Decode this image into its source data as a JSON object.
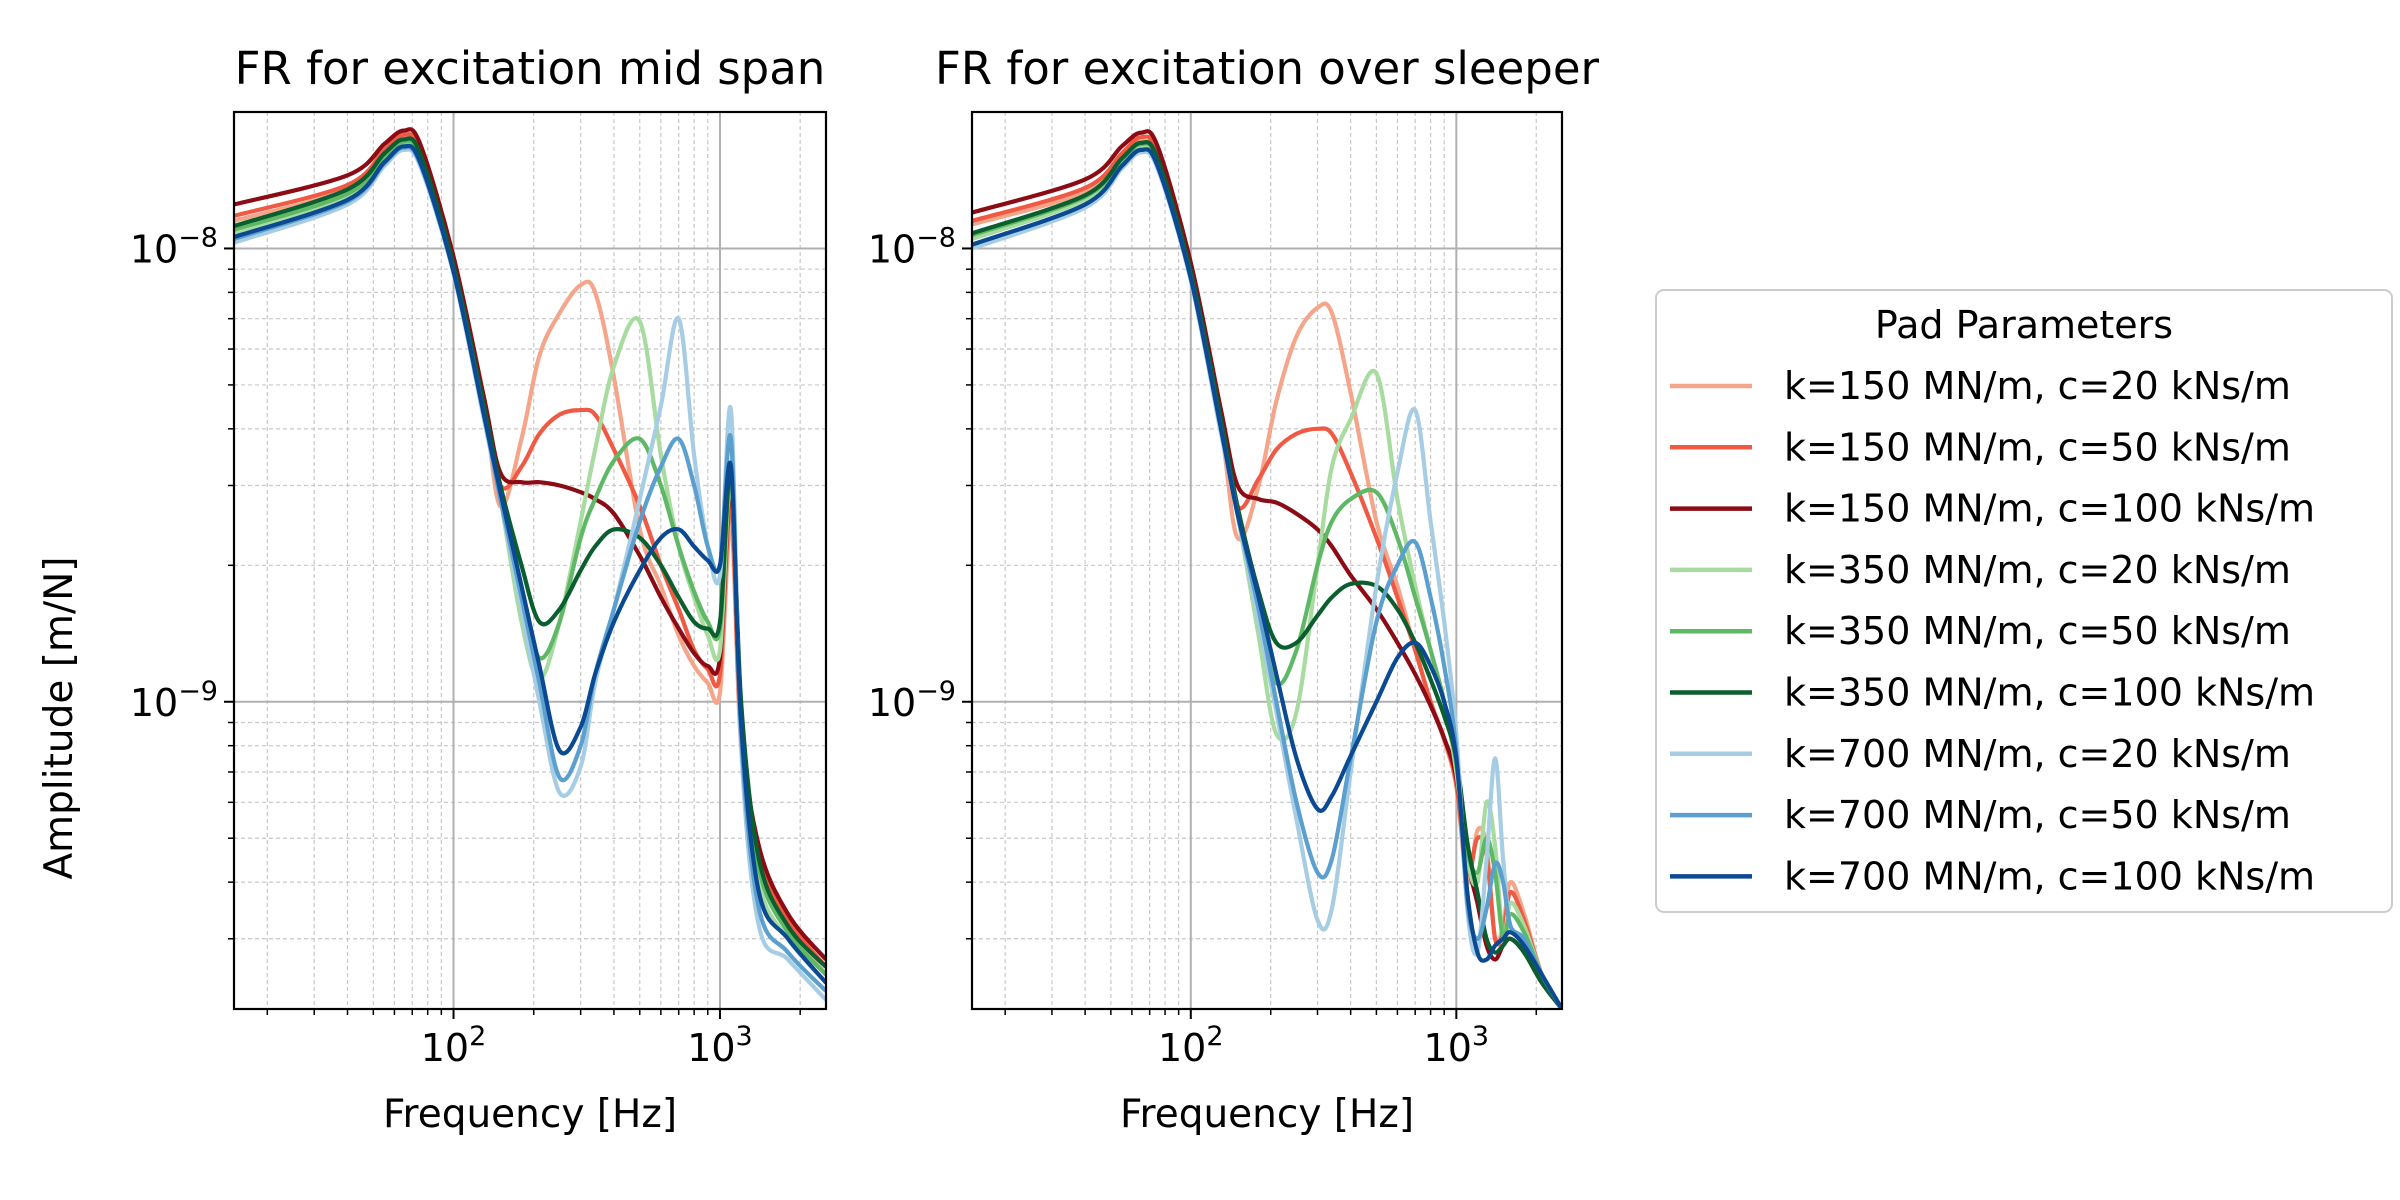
{
  "chart_data": [
    {
      "type": "line",
      "title": "FR for excitation mid span",
      "xlabel": "Frequency [Hz]",
      "ylabel": "Amplitude [m/N]",
      "ylabel_color": "#0000ff",
      "xscale": "log",
      "yscale": "log",
      "xlim": [
        15,
        2500
      ],
      "ylim": [
        2.1e-10,
        2e-08
      ],
      "x_major_ticks": [
        {
          "value": 100,
          "base": "10",
          "exp": "2"
        },
        {
          "value": 1000,
          "base": "10",
          "exp": "3"
        }
      ],
      "y_major_ticks": [
        {
          "value": 1e-09,
          "base": "10",
          "exp": "−9"
        },
        {
          "value": 1e-08,
          "base": "10",
          "exp": "−8"
        }
      ],
      "grid": true,
      "x": [
        15,
        40,
        55,
        65,
        75,
        100,
        130,
        150,
        180,
        210,
        250,
        300,
        340,
        400,
        500,
        600,
        700,
        800,
        900,
        1000,
        1100,
        1200,
        1400,
        1800,
        2500
      ],
      "series": [
        {
          "name": "k=150 MN/m, c=20 kNs/m",
          "color": "#f4a58a",
          "values": [
            1.15e-08,
            1.35e-08,
            1.6e-08,
            1.74e-08,
            1.6e-08,
            9.2e-09,
            4.5e-09,
            2.7e-09,
            3.8e-09,
            5.8e-09,
            7.2e-09,
            8.3e-09,
            8e-09,
            5.2e-09,
            2.4e-09,
            1.8e-09,
            1.4e-09,
            1.2e-09,
            1.1e-09,
            1.05e-09,
            2.5e-09,
            8e-10,
            4.4e-10,
            3.2e-10,
            2.5e-10
          ]
        },
        {
          "name": "k=150 MN/m, c=50 kNs/m",
          "color": "#f05a44",
          "values": [
            1.18e-08,
            1.38e-08,
            1.65e-08,
            1.78e-08,
            1.65e-08,
            9.4e-09,
            4.6e-09,
            3e-09,
            3.3e-09,
            3.9e-09,
            4.3e-09,
            4.4e-09,
            4.3e-09,
            3.6e-09,
            2.7e-09,
            2e-09,
            1.6e-09,
            1.3e-09,
            1.18e-09,
            1.15e-09,
            2.8e-09,
            8.5e-10,
            4.6e-10,
            3.3e-10,
            2.6e-10
          ]
        },
        {
          "name": "k=150 MN/m, c=100 kNs/m",
          "color": "#8b0c14",
          "values": [
            1.25e-08,
            1.45e-08,
            1.7e-08,
            1.82e-08,
            1.7e-08,
            9.6e-09,
            4.7e-09,
            3.2e-09,
            3.05e-09,
            3.05e-09,
            3e-09,
            2.9e-09,
            2.8e-09,
            2.6e-09,
            2.1e-09,
            1.7e-09,
            1.45e-09,
            1.28e-09,
            1.2e-09,
            1.25e-09,
            3e-09,
            9e-10,
            4.8e-10,
            3.4e-10,
            2.7e-10
          ]
        },
        {
          "name": "k=350 MN/m, c=20 kNs/m",
          "color": "#a8dba0",
          "values": [
            1.08e-08,
            1.3e-08,
            1.58e-08,
            1.7e-08,
            1.58e-08,
            9e-09,
            4.3e-09,
            2.8e-09,
            1.5e-09,
            1.12e-09,
            1.5e-09,
            2.5e-09,
            3.6e-09,
            5.5e-09,
            6.9e-09,
            3.5e-09,
            2.2e-09,
            1.7e-09,
            1.4e-09,
            1.3e-09,
            3.1e-09,
            9e-10,
            4e-10,
            3e-10,
            2.4e-10
          ]
        },
        {
          "name": "k=350 MN/m, c=50 kNs/m",
          "color": "#5fb865",
          "values": [
            1.1e-08,
            1.32e-08,
            1.6e-08,
            1.72e-08,
            1.6e-08,
            9.1e-09,
            4.4e-09,
            2.9e-09,
            1.7e-09,
            1.25e-09,
            1.5e-09,
            2.3e-09,
            2.8e-09,
            3.4e-09,
            3.8e-09,
            3e-09,
            2.2e-09,
            1.75e-09,
            1.5e-09,
            1.45e-09,
            3.2e-09,
            9.5e-10,
            4.3e-10,
            3.1e-10,
            2.5e-10
          ]
        },
        {
          "name": "k=350 MN/m, c=100 kNs/m",
          "color": "#0b5e2e",
          "values": [
            1.12e-08,
            1.35e-08,
            1.62e-08,
            1.74e-08,
            1.62e-08,
            9.2e-09,
            4.5e-09,
            3e-09,
            2e-09,
            1.5e-09,
            1.6e-09,
            1.95e-09,
            2.2e-09,
            2.4e-09,
            2.3e-09,
            2e-09,
            1.7e-09,
            1.5e-09,
            1.45e-09,
            1.5e-09,
            3.3e-09,
            1e-09,
            4.5e-10,
            3.2e-10,
            2.6e-10
          ]
        },
        {
          "name": "k=700 MN/m, c=20 kNs/m",
          "color": "#a6cde3",
          "values": [
            1.03e-08,
            1.25e-08,
            1.52e-08,
            1.65e-08,
            1.52e-08,
            8.8e-09,
            4.2e-09,
            2.8e-09,
            1.6e-09,
            1e-09,
            6.3e-10,
            7.2e-10,
            1.1e-09,
            1.6e-09,
            2.8e-09,
            4.5e-09,
            7e-09,
            3.5e-09,
            2.2e-09,
            1.9e-09,
            4.4e-09,
            8e-10,
            3.2e-10,
            2.7e-10,
            2.2e-10
          ]
        },
        {
          "name": "k=700 MN/m, c=50 kNs/m",
          "color": "#5b9fcf",
          "values": [
            1.05e-08,
            1.27e-08,
            1.54e-08,
            1.67e-08,
            1.54e-08,
            8.9e-09,
            4.3e-09,
            2.8e-09,
            1.7e-09,
            1.1e-09,
            6.8e-10,
            8e-10,
            1.15e-09,
            1.6e-09,
            2.5e-09,
            3.3e-09,
            3.8e-09,
            3e-09,
            2.2e-09,
            2e-09,
            3.8e-09,
            8.5e-10,
            3.5e-10,
            2.8e-10,
            2.3e-10
          ]
        },
        {
          "name": "k=700 MN/m, c=100 kNs/m",
          "color": "#0b4a92",
          "values": [
            1.06e-08,
            1.28e-08,
            1.55e-08,
            1.68e-08,
            1.55e-08,
            8.9e-09,
            4.3e-09,
            2.9e-09,
            1.8e-09,
            1.2e-09,
            7.8e-10,
            8.8e-10,
            1.15e-09,
            1.5e-09,
            1.95e-09,
            2.3e-09,
            2.4e-09,
            2.2e-09,
            2.05e-09,
            2e-09,
            3.3e-09,
            9e-10,
            3.8e-10,
            3e-10,
            2.4e-10
          ]
        }
      ]
    },
    {
      "type": "line",
      "title": "FR for excitation over sleeper",
      "xlabel": "Frequency [Hz]",
      "xscale": "log",
      "yscale": "log",
      "xlim": [
        15,
        2500
      ],
      "ylim": [
        2.1e-10,
        2e-08
      ],
      "x_major_ticks": [
        {
          "value": 100,
          "base": "10",
          "exp": "2"
        },
        {
          "value": 1000,
          "base": "10",
          "exp": "3"
        }
      ],
      "y_major_ticks": [
        {
          "value": 1e-09,
          "base": "10",
          "exp": "−9"
        },
        {
          "value": 1e-08,
          "base": "10",
          "exp": "−8"
        }
      ],
      "grid": true,
      "x": [
        15,
        40,
        55,
        65,
        75,
        100,
        130,
        150,
        180,
        210,
        250,
        300,
        340,
        400,
        500,
        600,
        700,
        800,
        900,
        1000,
        1100,
        1200,
        1300,
        1400,
        1500,
        1600,
        1800,
        2100,
        2500
      ],
      "series": [
        {
          "name": "k=150 MN/m, c=20 kNs/m",
          "color": "#f4a58a",
          "values": [
            1.13e-08,
            1.33e-08,
            1.58e-08,
            1.72e-08,
            1.58e-08,
            8.8e-09,
            4e-09,
            2.3e-09,
            3e-09,
            4.6e-09,
            6.4e-09,
            7.4e-09,
            7.2e-09,
            4.8e-09,
            2.5e-09,
            1.8e-09,
            1.3e-09,
            1e-09,
            8.2e-10,
            6.5e-10,
            4e-10,
            5.2e-10,
            4.8e-10,
            3e-10,
            3.2e-10,
            4e-10,
            3.4e-10,
            2.5e-10,
            2.1e-10
          ]
        },
        {
          "name": "k=150 MN/m, c=50 kNs/m",
          "color": "#f05a44",
          "values": [
            1.15e-08,
            1.36e-08,
            1.62e-08,
            1.76e-08,
            1.62e-08,
            9e-09,
            4.2e-09,
            2.7e-09,
            3.1e-09,
            3.6e-09,
            3.9e-09,
            4e-09,
            3.9e-09,
            3.2e-09,
            2.3e-09,
            1.7e-09,
            1.3e-09,
            1e-09,
            8.3e-10,
            6.6e-10,
            4.2e-10,
            5e-10,
            4.6e-10,
            3e-10,
            3.1e-10,
            3.8e-10,
            3.3e-10,
            2.5e-10,
            2.1e-10
          ]
        },
        {
          "name": "k=150 MN/m, c=100 kNs/m",
          "color": "#8b0c14",
          "values": [
            1.2e-08,
            1.42e-08,
            1.68e-08,
            1.8e-08,
            1.68e-08,
            9.3e-09,
            4.4e-09,
            3e-09,
            2.8e-09,
            2.75e-09,
            2.6e-09,
            2.4e-09,
            2.2e-09,
            1.9e-09,
            1.6e-09,
            1.35e-09,
            1.15e-09,
            9.8e-10,
            8.3e-10,
            6.8e-10,
            4.5e-10,
            3.6e-10,
            2.9e-10,
            2.7e-10,
            2.9e-10,
            3e-10,
            2.8e-10,
            2.4e-10,
            2.1e-10
          ]
        },
        {
          "name": "k=350 MN/m, c=20 kNs/m",
          "color": "#a8dba0",
          "values": [
            1.05e-08,
            1.28e-08,
            1.55e-08,
            1.68e-08,
            1.55e-08,
            8.7e-09,
            4e-09,
            2.6e-09,
            1.4e-09,
            8.5e-10,
            9.5e-10,
            2e-09,
            3.3e-09,
            4.2e-09,
            5.3e-09,
            2.8e-09,
            1.8e-09,
            1.3e-09,
            1e-09,
            7e-10,
            4.5e-10,
            4e-10,
            6e-10,
            4.8e-10,
            3e-10,
            3.6e-10,
            3.2e-10,
            2.5e-10,
            2.1e-10
          ]
        },
        {
          "name": "k=350 MN/m, c=50 kNs/m",
          "color": "#5fb865",
          "values": [
            1.07e-08,
            1.3e-08,
            1.57e-08,
            1.7e-08,
            1.57e-08,
            8.8e-09,
            4.1e-09,
            2.6e-09,
            1.6e-09,
            1.1e-09,
            1.3e-09,
            2e-09,
            2.5e-09,
            2.8e-09,
            2.9e-09,
            2.3e-09,
            1.7e-09,
            1.3e-09,
            1e-09,
            7.3e-10,
            4.7e-10,
            4.2e-10,
            5e-10,
            4.2e-10,
            3e-10,
            3.4e-10,
            3.1e-10,
            2.5e-10,
            2.1e-10
          ]
        },
        {
          "name": "k=350 MN/m, c=100 kNs/m",
          "color": "#0b5e2e",
          "values": [
            1.08e-08,
            1.31e-08,
            1.58e-08,
            1.71e-08,
            1.58e-08,
            8.9e-09,
            4.2e-09,
            2.7e-09,
            1.75e-09,
            1.35e-09,
            1.35e-09,
            1.55e-09,
            1.7e-09,
            1.82e-09,
            1.8e-09,
            1.6e-09,
            1.35e-09,
            1.12e-09,
            9.3e-10,
            7.5e-10,
            4.9e-10,
            3.8e-10,
            3e-10,
            2.8e-10,
            2.9e-10,
            3e-10,
            2.8e-10,
            2.4e-10,
            2.1e-10
          ]
        },
        {
          "name": "k=700 MN/m, c=20 kNs/m",
          "color": "#a6cde3",
          "values": [
            1e-08,
            1.23e-08,
            1.5e-08,
            1.63e-08,
            1.5e-08,
            8.5e-09,
            3.9e-09,
            2.6e-09,
            1.5e-09,
            9.5e-10,
            5.5e-10,
            3.3e-10,
            3.5e-10,
            7e-10,
            1.8e-09,
            3.2e-09,
            4.4e-09,
            2.5e-09,
            1.5e-09,
            8.5e-10,
            3.5e-10,
            2.8e-10,
            4.5e-10,
            7.5e-10,
            4.5e-10,
            3.2e-10,
            3e-10,
            2.5e-10,
            2.1e-10
          ]
        },
        {
          "name": "k=700 MN/m, c=50 kNs/m",
          "color": "#5b9fcf",
          "values": [
            1.02e-08,
            1.25e-08,
            1.52e-08,
            1.65e-08,
            1.52e-08,
            8.6e-09,
            4e-09,
            2.6e-09,
            1.6e-09,
            1e-09,
            6e-10,
            4.2e-10,
            4.5e-10,
            7.5e-10,
            1.5e-09,
            2e-09,
            2.25e-09,
            1.7e-09,
            1.2e-09,
            7.8e-10,
            3.6e-10,
            3e-10,
            3.5e-10,
            4.4e-10,
            4e-10,
            3.2e-10,
            3e-10,
            2.5e-10,
            2.1e-10
          ]
        },
        {
          "name": "k=700 MN/m, c=100 kNs/m",
          "color": "#0b4a92",
          "values": [
            1.02e-08,
            1.25e-08,
            1.52e-08,
            1.65e-08,
            1.52e-08,
            8.6e-09,
            4e-09,
            2.6e-09,
            1.7e-09,
            1.15e-09,
            7.5e-10,
            5.8e-10,
            6.2e-10,
            7.6e-10,
            1e-09,
            1.25e-09,
            1.35e-09,
            1.2e-09,
            1e-09,
            7.5e-10,
            3.8e-10,
            2.8e-10,
            2.7e-10,
            2.9e-10,
            3e-10,
            3.1e-10,
            2.9e-10,
            2.5e-10,
            2.1e-10
          ]
        }
      ]
    }
  ],
  "legend": {
    "title": "Pad Parameters",
    "placement": "right",
    "entries": [
      {
        "label": "k=150 MN/m, c=20 kNs/m",
        "color": "#f4a58a"
      },
      {
        "label": "k=150 MN/m, c=50 kNs/m",
        "color": "#f05a44"
      },
      {
        "label": "k=150 MN/m, c=100 kNs/m",
        "color": "#8b0c14"
      },
      {
        "label": "k=350 MN/m, c=20 kNs/m",
        "color": "#a8dba0"
      },
      {
        "label": "k=350 MN/m, c=50 kNs/m",
        "color": "#5fb865"
      },
      {
        "label": "k=350 MN/m, c=100 kNs/m",
        "color": "#0b5e2e"
      },
      {
        "label": "k=700 MN/m, c=20 kNs/m",
        "color": "#a6cde3"
      },
      {
        "label": "k=700 MN/m, c=50 kNs/m",
        "color": "#5b9fcf"
      },
      {
        "label": "k=700 MN/m, c=100 kNs/m",
        "color": "#0b4a92"
      }
    ]
  }
}
